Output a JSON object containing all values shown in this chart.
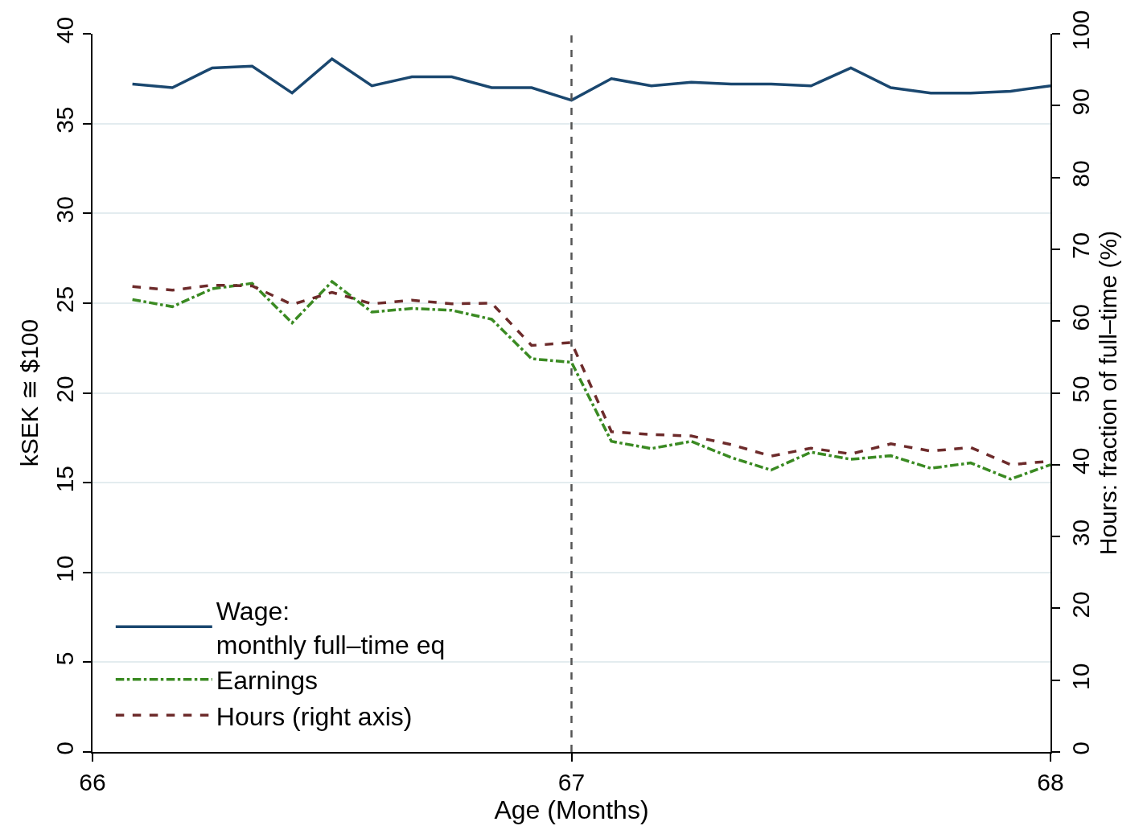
{
  "chart_data": {
    "type": "line",
    "xlabel": "Age (Months)",
    "ylabel": "kSEK ≅ $100",
    "y2label": "Hours: fraction of full–time (%)",
    "x": [
      66.0833,
      66.1667,
      66.25,
      66.3333,
      66.4167,
      66.5,
      66.5833,
      66.6667,
      66.75,
      66.8333,
      66.9167,
      67.0,
      67.0833,
      67.1667,
      67.25,
      67.3333,
      67.4167,
      67.5,
      67.5833,
      67.6667,
      67.75,
      67.8333,
      67.9167,
      68.0
    ],
    "series": [
      {
        "name": "Wage:\nmonthly full–time eq",
        "color": "#1a476f",
        "line_style": "solid",
        "values": [
          37.2,
          37.0,
          38.1,
          38.2,
          36.7,
          38.6,
          37.1,
          37.6,
          37.6,
          37.0,
          37.0,
          36.3,
          37.5,
          37.1,
          37.3,
          37.2,
          37.2,
          37.1,
          38.1,
          37.0,
          36.7,
          36.7,
          36.8,
          37.1
        ]
      },
      {
        "name": "Earnings",
        "color": "#3a8a22",
        "line_style": "dashdot",
        "values": [
          25.2,
          24.8,
          25.8,
          26.1,
          23.9,
          26.2,
          24.5,
          24.7,
          24.6,
          24.1,
          21.9,
          21.7,
          17.3,
          16.9,
          17.3,
          16.4,
          15.7,
          16.7,
          16.3,
          16.5,
          15.8,
          16.1,
          15.2,
          16.0
        ]
      },
      {
        "name": "Hours (right axis)",
        "color": "#6d2b2b",
        "line_style": "dashed",
        "axis": "y2",
        "values": [
          64.8,
          64.3,
          65.0,
          64.9,
          62.3,
          64.0,
          62.4,
          62.9,
          62.4,
          62.5,
          56.6,
          57.0,
          44.6,
          44.2,
          44.0,
          42.8,
          41.2,
          42.3,
          41.5,
          42.9,
          41.9,
          42.4,
          40.0,
          40.5
        ]
      }
    ],
    "xlim": [
      66,
      68
    ],
    "xticks": [
      66,
      67,
      68
    ],
    "ylim": [
      0,
      40
    ],
    "yticks": [
      0,
      5,
      10,
      15,
      20,
      25,
      30,
      35,
      40
    ],
    "y2lim": [
      0,
      100
    ],
    "y2ticks": [
      0,
      10,
      20,
      30,
      40,
      50,
      60,
      70,
      80,
      90,
      100
    ],
    "ref_lines": [
      {
        "axis": "x",
        "value": 67,
        "color": "#555555",
        "line_style": "dashed"
      }
    ],
    "grid": "y",
    "legend": "bottom left",
    "marker": "none"
  }
}
